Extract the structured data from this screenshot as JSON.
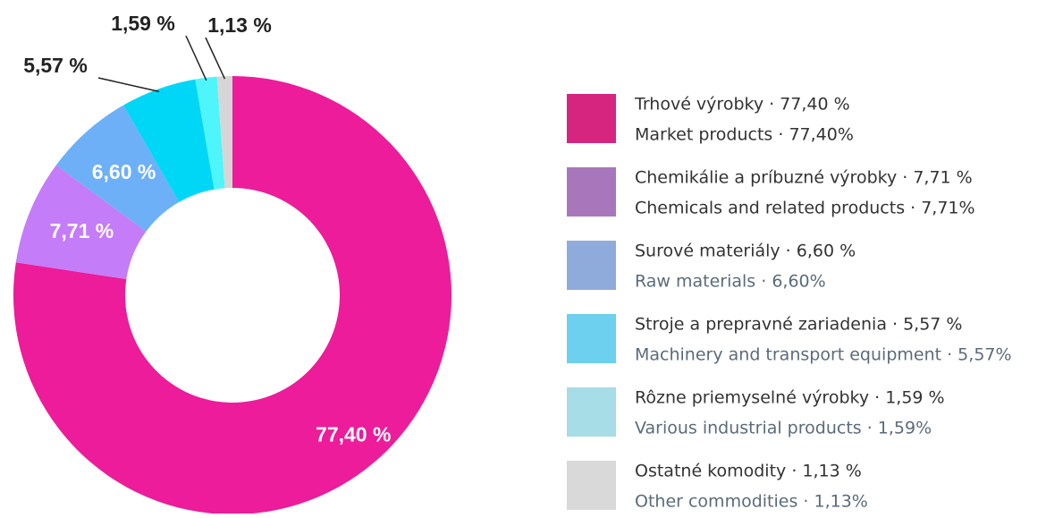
{
  "chart_data": {
    "type": "pie",
    "categories": [
      "Trhové výrobky · 77,40 %",
      "Chemikálie a príbuzné výrobky · 7,71 %",
      "Surové materiály · 6,60 %",
      "Stroje a prepravné zariadenia · 5,57 %",
      "Rôzne priemyselné výrobky · 1,59 %",
      "Ostatné komodity · 1,13 %"
    ],
    "categories_en": [
      "Market products  · 77,40%",
      "Chemicals and related products · 7,71%",
      "Raw materials · 6,60%",
      "Machinery and transport equipment · 5,57%",
      "Various industrial products  · 1,59%",
      "Other commodities  · 1,13%"
    ],
    "values": [
      77.4,
      7.71,
      6.6,
      5.57,
      1.59,
      1.13
    ],
    "value_labels": [
      "77,40 %",
      "7,71 %",
      "6,60 %",
      "5,57 %",
      "1,59 %",
      "1,13 %"
    ],
    "colors": [
      "#ec1c9a",
      "#c47cf9",
      "#6db0f7",
      "#00d7f7",
      "#4ef5fa",
      "#d6d6d6"
    ],
    "legend_colors": [
      "#d6257f",
      "#a877bb",
      "#8fabdc",
      "#6dd0ee",
      "#a6dde6",
      "#d9d9d9"
    ]
  }
}
